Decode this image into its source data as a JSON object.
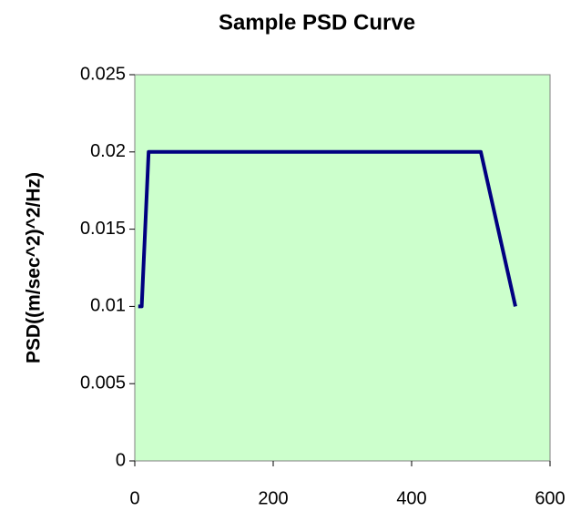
{
  "chart_data": {
    "type": "line",
    "title": "Sample PSD Curve",
    "y_label": "PSD((m/sec^2)^2/Hz)",
    "x": [
      5,
      10,
      20,
      500,
      550
    ],
    "series": [
      {
        "name": "PSD",
        "color": "#000080",
        "values": [
          0.01,
          0.01,
          0.02,
          0.02,
          0.01
        ]
      }
    ],
    "xlim": [
      0,
      600
    ],
    "xticks": [
      0,
      200,
      400,
      600
    ],
    "ylim": [
      0,
      0.025
    ],
    "yticks": [
      0,
      0.005,
      0.01,
      0.015,
      0.02,
      0.025
    ],
    "grid": false,
    "background": "#ccffcc"
  }
}
